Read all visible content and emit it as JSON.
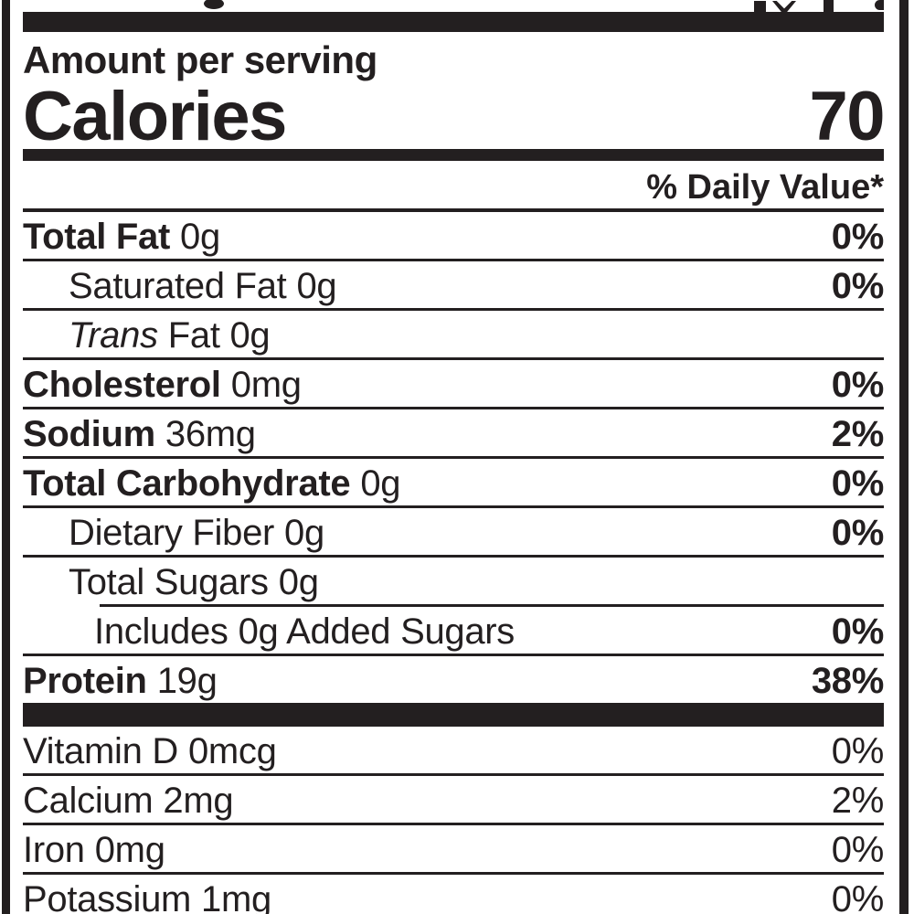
{
  "colors": {
    "ink": "#231f20",
    "background": "#ffffff"
  },
  "header": {
    "amount_per_serving": "Amount per serving",
    "calories_label": "Calories",
    "calories_value": "70",
    "daily_value_header": "% Daily Value*"
  },
  "nutrients": [
    {
      "name": "Total Fat",
      "amount": "0g",
      "dv": "0%",
      "name_bold": true,
      "italic": false,
      "indent": 0,
      "dv_bold": true,
      "rule": "full"
    },
    {
      "name": "Saturated Fat",
      "amount": "0g",
      "dv": "0%",
      "name_bold": false,
      "italic": false,
      "indent": 1,
      "dv_bold": true,
      "rule": "full"
    },
    {
      "name": "Trans",
      "amount": "Fat 0g",
      "dv": "",
      "name_bold": false,
      "italic": true,
      "indent": 1,
      "dv_bold": false,
      "rule": "full"
    },
    {
      "name": "Cholesterol",
      "amount": "0mg",
      "dv": "0%",
      "name_bold": true,
      "italic": false,
      "indent": 0,
      "dv_bold": true,
      "rule": "full"
    },
    {
      "name": "Sodium",
      "amount": "36mg",
      "dv": "2%",
      "name_bold": true,
      "italic": false,
      "indent": 0,
      "dv_bold": true,
      "rule": "full"
    },
    {
      "name": "Total Carbohydrate",
      "amount": "0g",
      "dv": "0%",
      "name_bold": true,
      "italic": false,
      "indent": 0,
      "dv_bold": true,
      "rule": "full"
    },
    {
      "name": "Dietary Fiber",
      "amount": "0g",
      "dv": "0%",
      "name_bold": false,
      "italic": false,
      "indent": 1,
      "dv_bold": true,
      "rule": "full"
    },
    {
      "name": "Total Sugars",
      "amount": "0g",
      "dv": "",
      "name_bold": false,
      "italic": false,
      "indent": 1,
      "dv_bold": false,
      "rule": "indent"
    },
    {
      "name": "Includes",
      "amount": "0g Added Sugars",
      "dv": "0%",
      "name_bold": false,
      "italic": false,
      "indent": 2,
      "dv_bold": true,
      "rule": "full"
    },
    {
      "name": "Protein",
      "amount": "19g",
      "dv": "38%",
      "name_bold": true,
      "italic": false,
      "indent": 0,
      "dv_bold": true,
      "rule": "none"
    }
  ],
  "micronutrients": [
    {
      "name": "Vitamin D",
      "amount": "0mcg",
      "dv": "0%",
      "rule": "full"
    },
    {
      "name": "Calcium",
      "amount": "2mg",
      "dv": "2%",
      "rule": "full"
    },
    {
      "name": "Iron",
      "amount": "0mg",
      "dv": "0%",
      "rule": "full"
    },
    {
      "name": "Potassium",
      "amount": "1mg",
      "dv": "0%",
      "rule": "none"
    }
  ]
}
